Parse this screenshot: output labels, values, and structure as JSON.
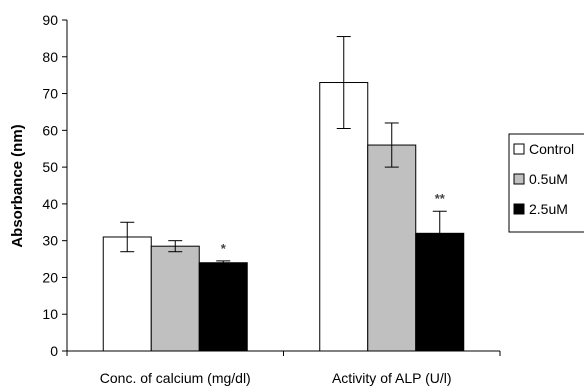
{
  "chart_data": {
    "type": "bar",
    "ylabel": "Absorbance (nm)",
    "xlabel": "",
    "ylim": [
      0,
      90
    ],
    "yticks": [
      "0",
      "10",
      "20",
      "30",
      "40",
      "50",
      "60",
      "70",
      "80",
      "90"
    ],
    "categories": [
      "Conc. of calcium (mg/dl)",
      "Activity of ALP (U/l)"
    ],
    "series": [
      {
        "name": "Control",
        "values": [
          31,
          73
        ],
        "errors": [
          4,
          12.5
        ],
        "color": "#ffffff"
      },
      {
        "name": "0.5uM",
        "values": [
          28.5,
          56
        ],
        "errors": [
          1.5,
          6
        ],
        "color": "#c0c0c0"
      },
      {
        "name": "2.5uM",
        "values": [
          24,
          32
        ],
        "errors": [
          0.5,
          6
        ],
        "color": "#000000"
      }
    ],
    "annotations": [
      {
        "category": 0,
        "series": 2,
        "text": "*"
      },
      {
        "category": 1,
        "series": 2,
        "text": "**"
      }
    ],
    "grid": false,
    "legend_position": "right"
  }
}
